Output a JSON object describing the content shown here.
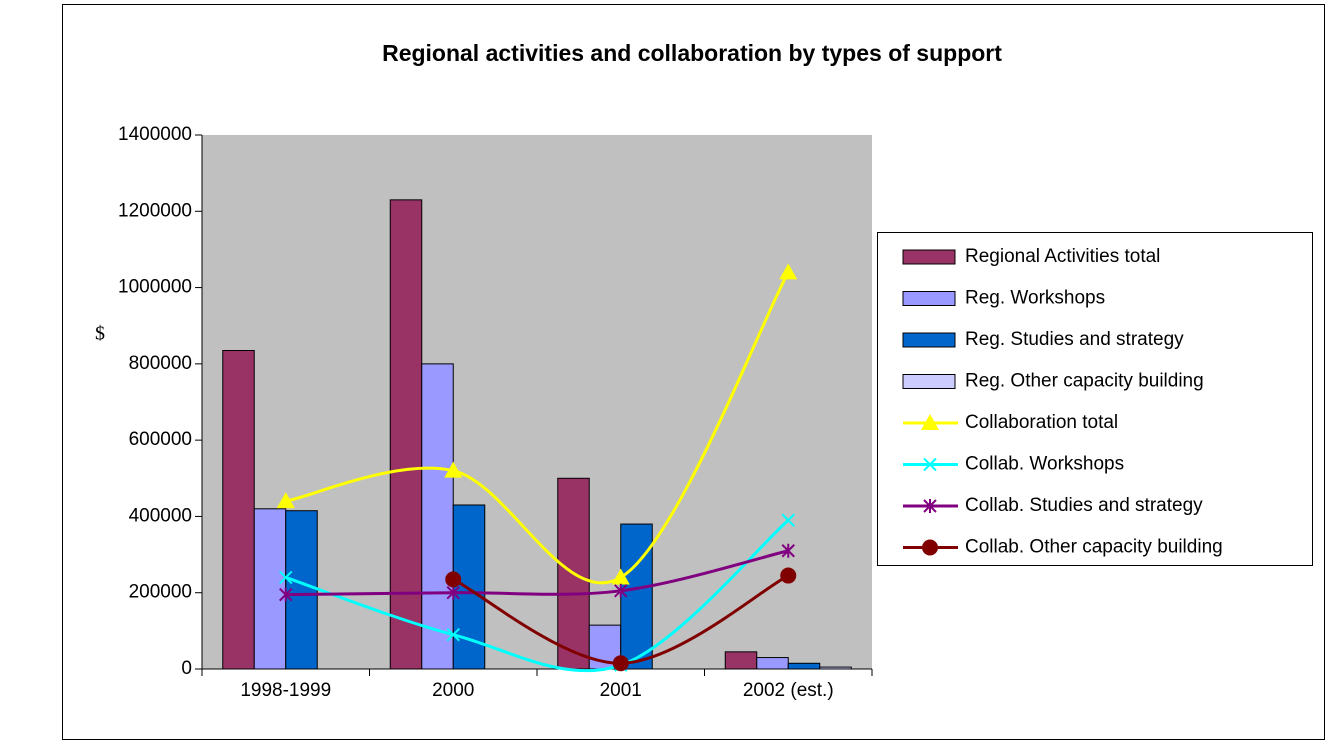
{
  "chart_data": {
    "type": "bar-line",
    "title": "Regional activities and collaboration by types of support",
    "y_label": "$",
    "categories": [
      "1998-1999",
      "2000",
      "2001",
      "2002 (est.)"
    ],
    "ylim": [
      0,
      1400000
    ],
    "yticks": [
      0,
      200000,
      400000,
      600000,
      800000,
      1000000,
      1200000,
      1400000
    ],
    "grid": false,
    "series": [
      {
        "name": "Regional Activities total",
        "type": "bar",
        "color": "#993366",
        "values": [
          835000,
          1230000,
          500000,
          45000
        ]
      },
      {
        "name": "Reg. Workshops",
        "type": "bar",
        "color": "#9999ff",
        "values": [
          420000,
          800000,
          115000,
          30000
        ]
      },
      {
        "name": "Reg. Studies and strategy",
        "type": "bar",
        "color": "#0066cc",
        "values": [
          415000,
          430000,
          380000,
          15000
        ]
      },
      {
        "name": "Reg. Other capacity building",
        "type": "bar",
        "color": "#ccccff",
        "values": [
          0,
          0,
          0,
          5000
        ]
      },
      {
        "name": "Collaboration total",
        "type": "line",
        "marker": "triangle",
        "color": "#ffff00",
        "values": [
          440000,
          520000,
          240000,
          1040000
        ]
      },
      {
        "name": "Collab. Workshops",
        "type": "line",
        "marker": "x",
        "color": "#00ffff",
        "values": [
          240000,
          90000,
          10000,
          390000
        ]
      },
      {
        "name": "Collab. Studies and strategy",
        "type": "line",
        "marker": "star",
        "color": "#800080",
        "values": [
          195000,
          200000,
          205000,
          310000
        ]
      },
      {
        "name": "Collab. Other capacity building",
        "type": "line",
        "marker": "circle",
        "color": "#800000",
        "values": [
          null,
          235000,
          15000,
          245000
        ]
      }
    ]
  }
}
